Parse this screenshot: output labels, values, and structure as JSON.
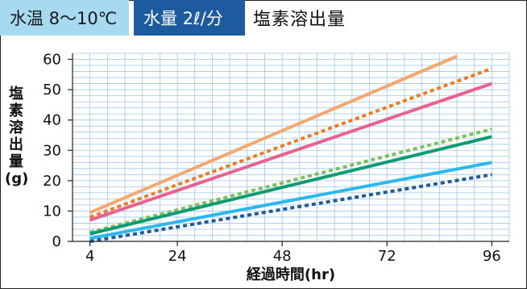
{
  "header": {
    "water_temp": "水温 8〜10℃",
    "water_flow": "水量 2ℓ/分",
    "title": "塩素溶出量"
  },
  "chart_data": {
    "type": "line",
    "title": "塩素溶出量",
    "xlabel": "経過時間(hr)",
    "ylabel_chars": [
      "塩",
      "素",
      "溶",
      "出",
      "量",
      "(g)"
    ],
    "x_ticks": [
      4,
      24,
      48,
      72,
      96
    ],
    "y_ticks": [
      0,
      10,
      20,
      30,
      40,
      50,
      60
    ],
    "xlim": [
      0,
      100
    ],
    "ylim": [
      0,
      62
    ],
    "grid": true,
    "series": [
      {
        "color": "#f4a76e",
        "style": "solid",
        "x": [
          4,
          88
        ],
        "y": [
          9.5,
          61
        ]
      },
      {
        "color": "#ef7a22",
        "style": "dotted",
        "x": [
          4,
          96
        ],
        "y": [
          8,
          57
        ]
      },
      {
        "color": "#e8628f",
        "style": "solid",
        "x": [
          4,
          96
        ],
        "y": [
          7,
          52
        ]
      },
      {
        "color": "#7cc05a",
        "style": "dotted",
        "x": [
          4,
          96
        ],
        "y": [
          3,
          37
        ]
      },
      {
        "color": "#119b74",
        "style": "solid",
        "x": [
          4,
          96
        ],
        "y": [
          2.5,
          34.5
        ]
      },
      {
        "color": "#2bb8ea",
        "style": "solid",
        "x": [
          4,
          96
        ],
        "y": [
          1,
          26
        ]
      },
      {
        "color": "#1d5a9e",
        "style": "dotted",
        "x": [
          4,
          96
        ],
        "y": [
          0,
          22
        ]
      }
    ]
  }
}
